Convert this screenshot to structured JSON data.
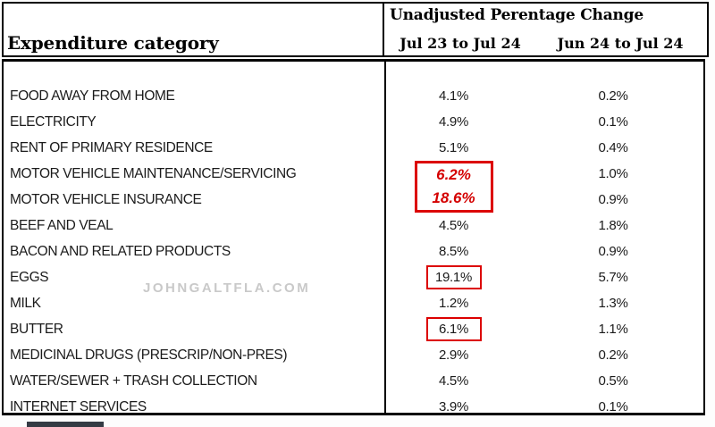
{
  "table": {
    "left_header": "Expenditure category",
    "right_header_title": "Unadjusted Perentage Change",
    "col1_header": "Jul 23 to Jul 24",
    "col2_header": "Jun 24 to Jul 24",
    "rows": [
      {
        "category": "FOOD AWAY FROM HOME",
        "col1": "4.1%",
        "col2": "0.2%",
        "col1_highlight": "none"
      },
      {
        "category": "ELECTRICITY",
        "col1": "4.9%",
        "col2": "0.1%",
        "col1_highlight": "none"
      },
      {
        "category": "RENT OF PRIMARY RESIDENCE",
        "col1": "5.1%",
        "col2": "0.4%",
        "col1_highlight": "none"
      },
      {
        "category": "MOTOR VEHICLE MAINTENANCE/SERVICING",
        "col1": "6.2%",
        "col2": "1.0%",
        "col1_highlight": "merged-top"
      },
      {
        "category": "MOTOR VEHICLE INSURANCE",
        "col1": "18.6%",
        "col2": "0.9%",
        "col1_highlight": "merged-bottom"
      },
      {
        "category": "BEEF AND VEAL",
        "col1": "4.5%",
        "col2": "1.8%",
        "col1_highlight": "none"
      },
      {
        "category": "BACON AND RELATED PRODUCTS",
        "col1": "8.5%",
        "col2": "0.9%",
        "col1_highlight": "none"
      },
      {
        "category": "EGGS",
        "col1": "19.1%",
        "col2": "5.7%",
        "col1_highlight": "box"
      },
      {
        "category": "MILK",
        "col1": "1.2%",
        "col2": "1.3%",
        "col1_highlight": "none"
      },
      {
        "category": "BUTTER",
        "col1": "6.1%",
        "col2": "1.1%",
        "col1_highlight": "box"
      },
      {
        "category": "MEDICINAL DRUGS (PRESCRIP/NON-PRES)",
        "col1": "2.9%",
        "col2": "0.2%",
        "col1_highlight": "none"
      },
      {
        "category": "WATER/SEWER + TRASH COLLECTION",
        "col1": "4.5%",
        "col2": "0.5%",
        "col1_highlight": "none"
      },
      {
        "category": "INTERNET SERVICES",
        "col1": "3.9%",
        "col2": "0.1%",
        "col1_highlight": "none"
      }
    ]
  },
  "chart_data": {
    "type": "table",
    "title": "Unadjusted Perentage Change",
    "columns": [
      "Expenditure category",
      "Jul 23 to Jul 24",
      "Jun 24 to Jul 24"
    ],
    "series": [
      {
        "name": "Jul 23 to Jul 24",
        "values": [
          4.1,
          4.9,
          5.1,
          6.2,
          18.6,
          4.5,
          8.5,
          19.1,
          1.2,
          6.1,
          2.9,
          4.5,
          3.9
        ]
      },
      {
        "name": "Jun 24 to Jul 24",
        "values": [
          0.2,
          0.1,
          0.4,
          1.0,
          0.9,
          1.8,
          0.9,
          5.7,
          1.3,
          1.1,
          0.2,
          0.5,
          0.1
        ]
      }
    ],
    "categories": [
      "FOOD AWAY FROM HOME",
      "ELECTRICITY",
      "RENT OF PRIMARY RESIDENCE",
      "MOTOR VEHICLE MAINTENANCE/SERVICING",
      "MOTOR VEHICLE INSURANCE",
      "BEEF AND VEAL",
      "BACON AND RELATED PRODUCTS",
      "EGGS",
      "MILK",
      "BUTTER",
      "MEDICINAL DRUGS (PRESCRIP/NON-PRES)",
      "WATER/SEWER + TRASH COLLECTION",
      "INTERNET SERVICES"
    ],
    "highlighted_values": [
      "6.2%",
      "18.6%",
      "19.1%",
      "6.1%"
    ]
  },
  "watermark": "JOHNGALTFLA.COM",
  "colors": {
    "highlight_red": "#dc0000",
    "highlight_text_red": "#d40000",
    "watermark_gray": "#c9c9c9",
    "bottom_bar": "#343b44",
    "border_black": "#000000"
  }
}
